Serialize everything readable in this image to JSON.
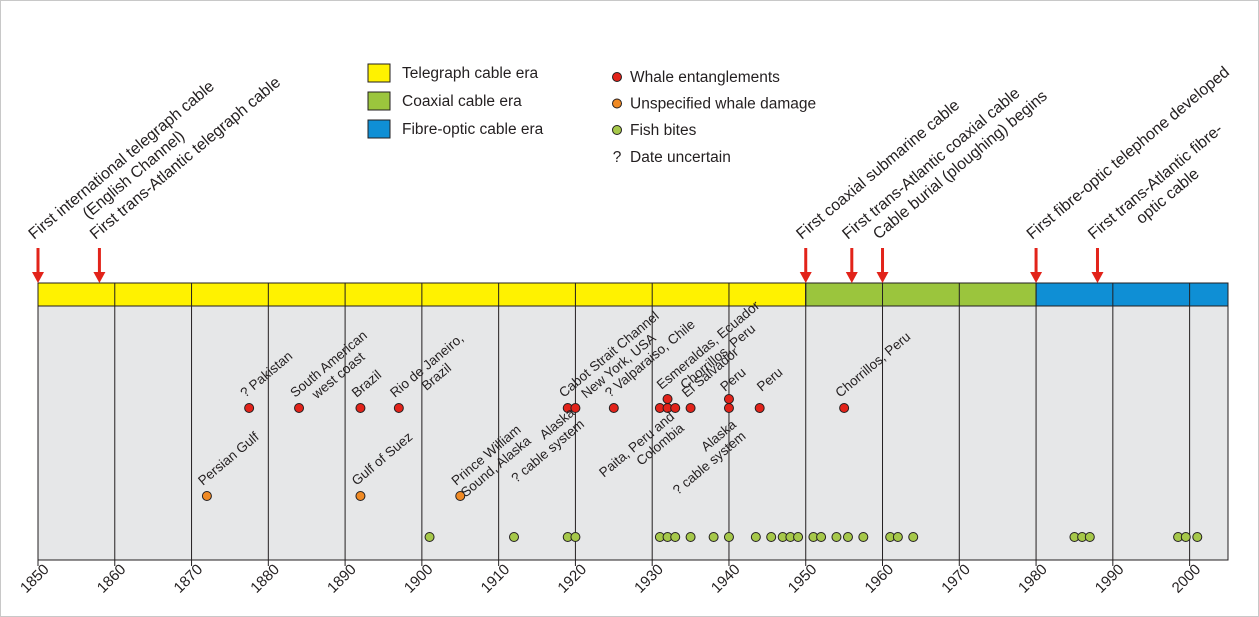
{
  "chart_data": {
    "type": "timeline",
    "xlim": [
      1850,
      2005
    ],
    "xticks": [
      1850,
      1860,
      1870,
      1880,
      1890,
      1900,
      1910,
      1920,
      1930,
      1940,
      1950,
      1960,
      1970,
      1980,
      1990,
      2000
    ],
    "eras": [
      {
        "name": "Telegraph cable era",
        "color": "#fff200",
        "start": 1850,
        "end": 1950
      },
      {
        "name": "Coaxial cable era",
        "color": "#9bc53d",
        "start": 1950,
        "end": 1980
      },
      {
        "name": "Fibre-optic cable era",
        "color": "#0f8fd5",
        "start": 1980,
        "end": 2005
      }
    ],
    "series": [
      {
        "name": "Whale entanglements",
        "color": "#e2231a",
        "x": [
          1877.5,
          1884,
          1892,
          1897,
          1919,
          1920,
          1925,
          1931,
          1932,
          1932,
          1933,
          1935,
          1940,
          1940,
          1944,
          1955
        ]
      },
      {
        "name": "Unspecified whale damage",
        "color": "#f08a24",
        "x": [
          1872,
          1892,
          1905
        ]
      },
      {
        "name": "Fish bites",
        "color": "#a6c84a",
        "x": [
          1901,
          1912,
          1919,
          1920,
          1931,
          1932,
          1933,
          1935,
          1938,
          1940,
          1943.5,
          1945.5,
          1947,
          1948,
          1949,
          1951,
          1952,
          1954,
          1955.5,
          1957.5,
          1961,
          1962,
          1964,
          1985,
          1986,
          1987,
          1998.5,
          1999.5,
          2001
        ]
      }
    ],
    "uncertain_legend": {
      "marker": "?",
      "name": "Date uncertain"
    },
    "milestones": [
      {
        "year": 1850,
        "lines": [
          "First international telegraph cable",
          "(English Channel)"
        ]
      },
      {
        "year": 1858,
        "lines": [
          "First trans-Atlantic telegraph cable"
        ]
      },
      {
        "year": 1950,
        "lines": [
          "First coaxial submarine cable"
        ]
      },
      {
        "year": 1956,
        "lines": [
          "First trans-Atlantic coaxial cable"
        ]
      },
      {
        "year": 1960,
        "lines": [
          "Cable burial (ploughing) begins"
        ]
      },
      {
        "year": 1980,
        "lines": [
          "First fibre-optic telephone developed"
        ]
      },
      {
        "year": 1988,
        "lines": [
          "First trans-Atlantic fibre-",
          "optic cable"
        ]
      }
    ],
    "annotations": [
      {
        "x": 1877.5,
        "lines": [
          "? Pakistan"
        ]
      },
      {
        "x": 1884,
        "lines": [
          "South American",
          "west coast"
        ]
      },
      {
        "x": 1892,
        "lines": [
          "Brazil"
        ]
      },
      {
        "x": 1897,
        "lines": [
          "Rio de Janeiro,",
          "Brazil"
        ]
      },
      {
        "x": 1919,
        "lines": [
          "Cabot Strait Channel",
          "New York, USA"
        ]
      },
      {
        "x": 1925,
        "lines": [
          "? Valparaiso, Chile"
        ]
      },
      {
        "x": 1932,
        "lines": [
          "Esmeraldas, Ecuador",
          "Chorrillos, Peru"
        ]
      },
      {
        "x": 1935,
        "lines": [
          "El Salvador"
        ]
      },
      {
        "x": 1940,
        "lines": [
          "Peru"
        ]
      },
      {
        "x": 1944,
        "lines": [
          "Peru"
        ]
      },
      {
        "x": 1955,
        "lines": [
          "Chorrillos, Peru"
        ]
      },
      {
        "x": 1872,
        "lines": [
          "Persian Gulf"
        ]
      },
      {
        "x": 1892,
        "lines": [
          "Gulf of Suez"
        ]
      },
      {
        "x": 1905,
        "lines": [
          "Prince William",
          "Sound, Alaska"
        ]
      },
      {
        "x": 1920,
        "lines": [
          "Alaska",
          "? cable system"
        ]
      },
      {
        "x": 1933,
        "lines": [
          "Paita, Peru and",
          "Colombia"
        ]
      },
      {
        "x": 1940,
        "lines": [
          "Alaska",
          "? cable system"
        ]
      }
    ]
  }
}
